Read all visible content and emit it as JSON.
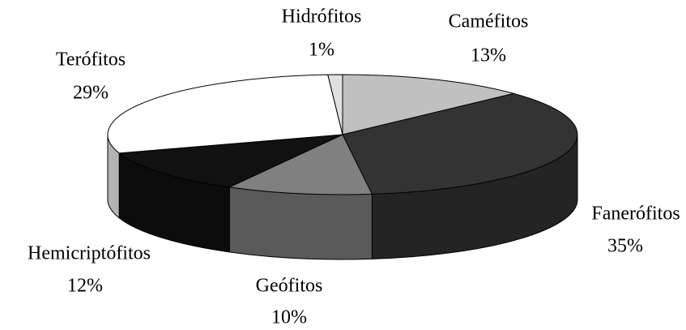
{
  "chart_data": {
    "type": "pie3d",
    "categories": [
      "Caméfitos",
      "Fanerófitos",
      "Geófitos",
      "Hemicriptófitos",
      "Terófitos",
      "Hidrófitos"
    ],
    "values": [
      13,
      35,
      10,
      12,
      29,
      1
    ],
    "value_labels": [
      "13%",
      "35%",
      "10%",
      "12%",
      "29%",
      "1%"
    ],
    "colors": [
      "#c0c0c0",
      "#333333",
      "#808080",
      "#111111",
      "#ffffff",
      "#e0e0e0"
    ]
  }
}
